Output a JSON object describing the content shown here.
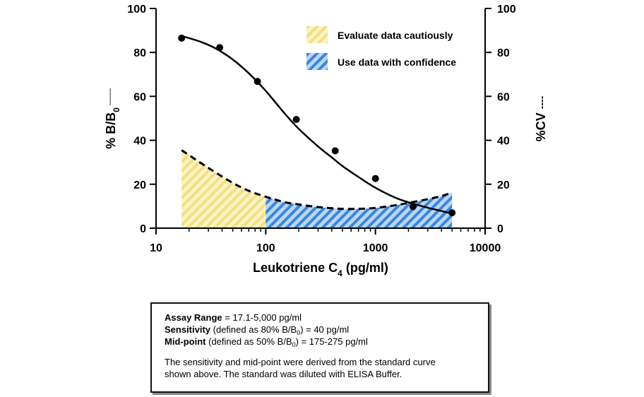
{
  "chart_data": {
    "type": "line",
    "x_scale": "log",
    "xlim": [
      10,
      10000
    ],
    "ylim": [
      0,
      100
    ],
    "y2lim": [
      0,
      100
    ],
    "x_ticks": [
      10,
      100,
      1000,
      10000
    ],
    "x_tick_labels": [
      "10",
      "100",
      "1000",
      "10000"
    ],
    "y_ticks": [
      0,
      20,
      40,
      60,
      80,
      100
    ],
    "y_tick_labels": [
      "0",
      "20",
      "40",
      "60",
      "80",
      "100"
    ],
    "y2_tick_labels": [
      "0",
      "20",
      "40",
      "60",
      "80",
      "100"
    ],
    "xlabel": {
      "base": "Leukotriene C",
      "sub": "4",
      "unit": " (pg/ml)"
    },
    "ylabel": {
      "base": "% B/B",
      "sub": "0",
      "line_marker": "——"
    },
    "y2label": {
      "base": "%CV",
      "line_marker": "----"
    },
    "series": [
      {
        "name": "% B/B0 data points",
        "kind": "scatter",
        "x": [
          17.1,
          38,
          84,
          190,
          430,
          1000,
          2200,
          5000
        ],
        "y": [
          86.5,
          82.2,
          66.8,
          49.5,
          35.2,
          22.6,
          9.8,
          7.0
        ]
      },
      {
        "name": "% B/B0 fitted curve",
        "kind": "solid-line",
        "x": [
          17.1,
          25,
          35,
          50,
          70,
          100,
          150,
          200,
          300,
          400,
          500,
          700,
          1000,
          1500,
          2000,
          3000,
          4000,
          5000
        ],
        "y": [
          87.5,
          85,
          81.8,
          76.8,
          70.5,
          62.5,
          52,
          45.2,
          37.2,
          32.2,
          28.3,
          23.3,
          18.4,
          14,
          11.8,
          9.3,
          7.8,
          6.6
        ]
      },
      {
        "name": "%CV",
        "kind": "dashed-line",
        "x": [
          17.1,
          25,
          35,
          50,
          70,
          100,
          150,
          200,
          300,
          400,
          500,
          700,
          1000,
          1500,
          2000,
          3000,
          4000,
          5000
        ],
        "y": [
          35.5,
          30,
          25.3,
          20.6,
          17,
          14.3,
          11.8,
          10.8,
          9.6,
          9.1,
          8.8,
          8.8,
          9.2,
          10.4,
          11.5,
          13.2,
          14.6,
          16.2
        ]
      }
    ],
    "regions": [
      {
        "name": "Evaluate data cautiously",
        "x_range": [
          17.1,
          100
        ],
        "pattern": "yellow-hatch"
      },
      {
        "name": "Use data with confidence",
        "x_range": [
          100,
          5000
        ],
        "pattern": "blue-hatch"
      }
    ],
    "legend": {
      "position": "top-right",
      "entries": [
        {
          "label": "Evaluate data cautiously",
          "pattern": "yellow-hatch"
        },
        {
          "label": "Use data with confidence",
          "pattern": "blue-hatch"
        }
      ]
    },
    "colors": {
      "yellow_fill": "#fcf3c4",
      "yellow_stripe": "#f3df83",
      "blue_fill": "#b9d6f5",
      "blue_stripe": "#3d86d8",
      "line": "#000000"
    }
  },
  "info_box": {
    "assay_range_label": "Assay Range",
    "assay_range_value": " = 17.1-5,000 pg/ml",
    "sensitivity_label": "Sensitivity",
    "sensitivity_text_a": " (defined as 80% B/B",
    "sensitivity_sub": "0",
    "sensitivity_text_b": ") = 40 pg/ml",
    "midpoint_label": "Mid-point",
    "midpoint_text_a": " (defined as 50% B/B",
    "midpoint_sub": "0",
    "midpoint_text_b": ") = 175-275 pg/ml",
    "note_line1": "The sensitivity and mid-point were derived from the standard curve",
    "note_line2": "shown above. The standard was diluted with ELISA Buffer."
  }
}
